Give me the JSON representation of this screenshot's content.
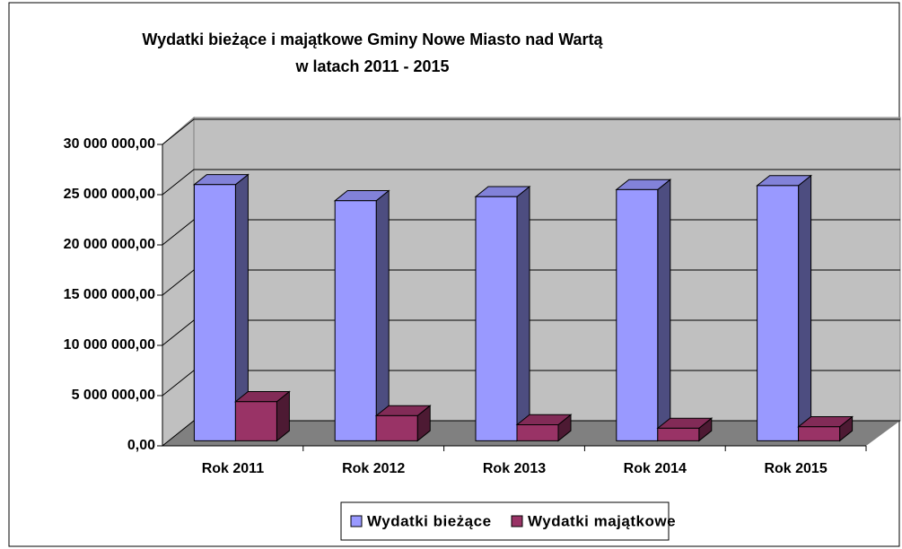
{
  "chart_data": {
    "type": "bar3d",
    "title": "Wydatki bieżące i majątkowe Gminy Nowe Miasto nad Wartą",
    "subtitle": "w latach 2011 - 2015",
    "categories": [
      "Rok 2011",
      "Rok 2012",
      "Rok 2013",
      "Rok 2014",
      "Rok 2015"
    ],
    "series": [
      {
        "name": "Wydatki bieżące",
        "color": "#9999ff",
        "values": [
          25500000,
          23900000,
          24300000,
          25000000,
          25400000
        ]
      },
      {
        "name": "Wydatki majątkowe",
        "color": "#993366",
        "values": [
          3900000,
          2500000,
          1600000,
          1250000,
          1400000
        ]
      }
    ],
    "ylim": [
      0,
      30000000
    ],
    "yticks": [
      {
        "value": 0,
        "label": "0,00"
      },
      {
        "value": 5000000,
        "label": "5 000 000,00"
      },
      {
        "value": 10000000,
        "label": "10 000 000,00"
      },
      {
        "value": 15000000,
        "label": "15 000 000,00"
      },
      {
        "value": 20000000,
        "label": "20 000 000,00"
      },
      {
        "value": 25000000,
        "label": "25 000 000,00"
      },
      {
        "value": 30000000,
        "label": "30 000 000,00"
      }
    ],
    "grid": true,
    "legend": "bottom"
  }
}
